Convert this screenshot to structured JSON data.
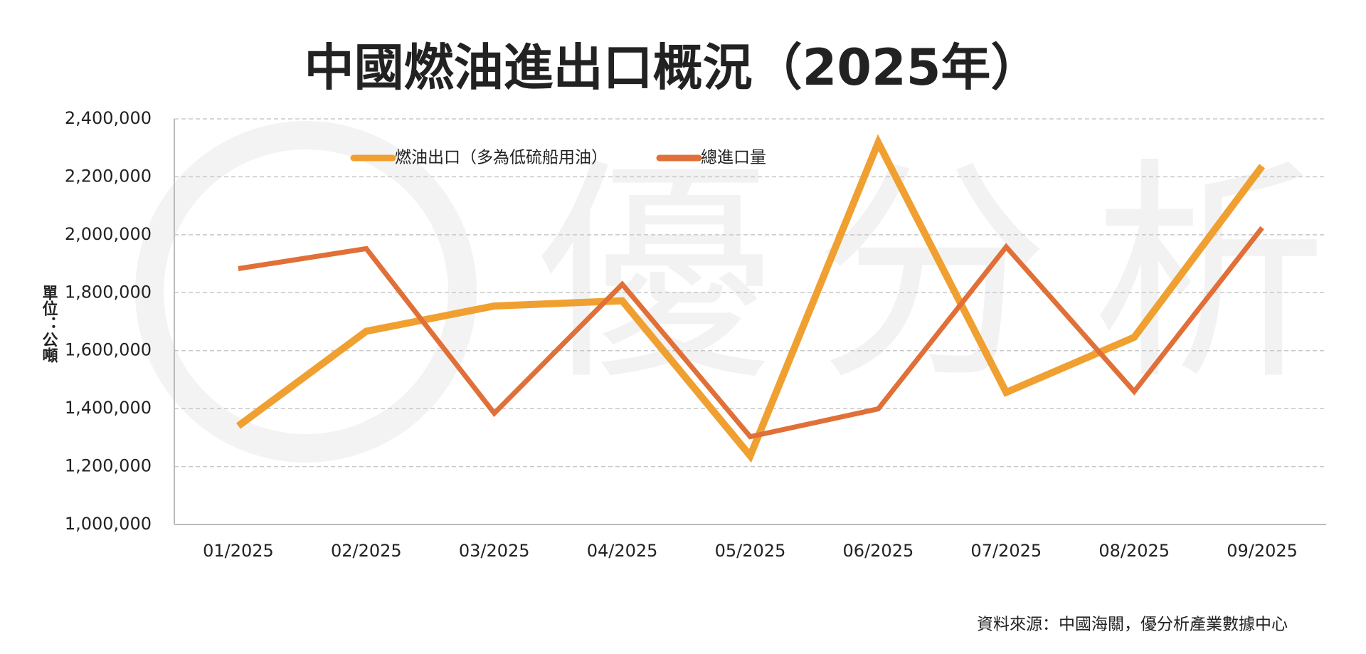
{
  "chart_data": {
    "type": "line",
    "title": "中國燃油進出口概況（2025年）",
    "y_label": "單位：公噸",
    "source": "資料來源：中國海關，優分析產業數據中心",
    "watermark": "優分析",
    "categories": [
      "01/2025",
      "02/2025",
      "03/2025",
      "04/2025",
      "05/2025",
      "06/2025",
      "07/2025",
      "08/2025",
      "09/2025"
    ],
    "series": [
      {
        "name": "燃油出口（多為低硫船用油）",
        "color": "#f0a030",
        "values": [
          1340000,
          1667000,
          1754000,
          1772000,
          1237000,
          2318000,
          1456000,
          1646000,
          2237000
        ]
      },
      {
        "name": "總進口量",
        "color": "#e07038",
        "values": [
          1883000,
          1952000,
          1384000,
          1829000,
          1303000,
          1399000,
          1958000,
          1459000,
          2024000
        ]
      }
    ],
    "ylim": [
      1000000,
      2400000
    ],
    "yticks": [
      {
        "value": 1000000,
        "label": "1,000,000"
      },
      {
        "value": 1200000,
        "label": "1,200,000"
      },
      {
        "value": 1400000,
        "label": "1,400,000"
      },
      {
        "value": 1600000,
        "label": "1,600,000"
      },
      {
        "value": 1800000,
        "label": "1,800,000"
      },
      {
        "value": 2000000,
        "label": "2,000,000"
      },
      {
        "value": 2200000,
        "label": "2,200,000"
      },
      {
        "value": 2400000,
        "label": "2,400,000"
      }
    ],
    "grid": true,
    "legend": "top"
  }
}
